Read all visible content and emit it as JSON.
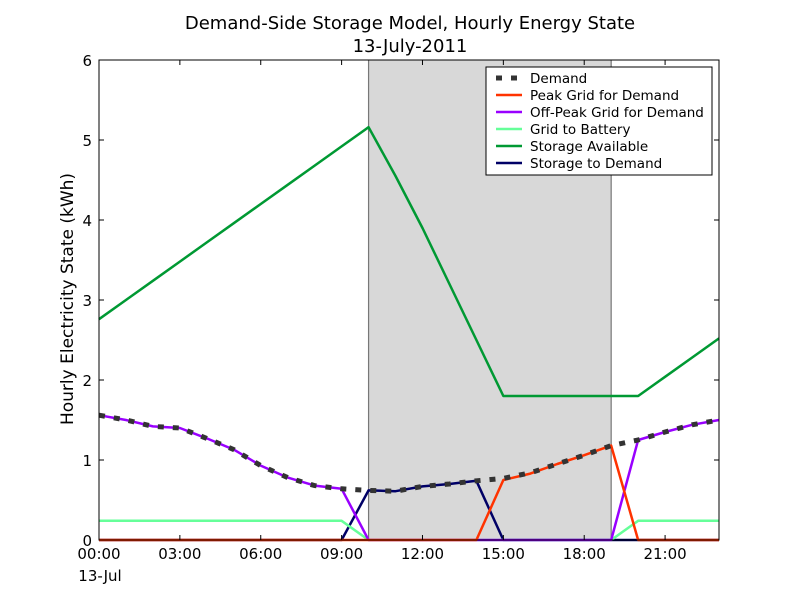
{
  "chart_data": {
    "type": "line",
    "title": "Demand-Side Storage Model, Hourly Energy State",
    "subtitle": "13-July-2011",
    "ylabel": "Hourly Electricity State (kWh)",
    "xlabel": "",
    "x_unit": "hour of day, 13-Jul-2011",
    "xlim": [
      0,
      23
    ],
    "ylim": [
      0,
      6
    ],
    "x_ticks": [
      {
        "x": 0,
        "label": "00:00"
      },
      {
        "x": 3,
        "label": "03:00"
      },
      {
        "x": 6,
        "label": "06:00"
      },
      {
        "x": 9,
        "label": "09:00"
      },
      {
        "x": 12,
        "label": "12:00"
      },
      {
        "x": 15,
        "label": "15:00"
      },
      {
        "x": 18,
        "label": "18:00"
      },
      {
        "x": 21,
        "label": "21:00"
      }
    ],
    "x_sublabel": "13-Jul",
    "y_ticks": [
      0,
      1,
      2,
      3,
      4,
      5,
      6
    ],
    "grid": false,
    "legend_position": "top-right",
    "peak_period": {
      "start": 10,
      "end": 19,
      "color": "#d8d8d8"
    },
    "series": [
      {
        "name": "Demand",
        "color": "#333333",
        "style": "dotted",
        "x": [
          0,
          1,
          2,
          3,
          4,
          5,
          6,
          7,
          8,
          9,
          10,
          11,
          12,
          13,
          14,
          15,
          16,
          17,
          18,
          19,
          20,
          21,
          22,
          23
        ],
        "values": [
          1.56,
          1.5,
          1.42,
          1.4,
          1.27,
          1.13,
          0.93,
          0.78,
          0.68,
          0.64,
          0.62,
          0.61,
          0.67,
          0.7,
          0.74,
          0.77,
          0.84,
          0.95,
          1.06,
          1.18,
          1.25,
          1.35,
          1.44,
          1.5
        ]
      },
      {
        "name": "Peak Grid for Demand",
        "color": "#ff3300",
        "style": "solid",
        "x": [
          0,
          1,
          2,
          3,
          4,
          5,
          6,
          7,
          8,
          9,
          10,
          11,
          12,
          13,
          14,
          15,
          16,
          17,
          18,
          19,
          20,
          21,
          22,
          23
        ],
        "values": [
          0,
          0,
          0,
          0,
          0,
          0,
          0,
          0,
          0,
          0,
          0,
          0,
          0,
          0,
          0,
          0.75,
          0.83,
          0.95,
          1.06,
          1.18,
          0,
          0,
          0,
          0
        ]
      },
      {
        "name": "Off-Peak Grid for Demand",
        "color": "#9900ff",
        "style": "solid",
        "x": [
          0,
          1,
          2,
          3,
          4,
          5,
          6,
          7,
          8,
          9,
          10,
          11,
          12,
          13,
          14,
          15,
          16,
          17,
          18,
          19,
          20,
          21,
          22,
          23
        ],
        "values": [
          1.56,
          1.5,
          1.42,
          1.4,
          1.27,
          1.13,
          0.93,
          0.78,
          0.68,
          0.64,
          0,
          0,
          0,
          0,
          0,
          0,
          0,
          0,
          0,
          0,
          1.25,
          1.35,
          1.44,
          1.5
        ]
      },
      {
        "name": "Grid to Battery",
        "color": "#66ff99",
        "style": "solid",
        "x": [
          0,
          1,
          2,
          3,
          4,
          5,
          6,
          7,
          8,
          9,
          10,
          11,
          12,
          13,
          14,
          15,
          16,
          17,
          18,
          19,
          20,
          21,
          22,
          23
        ],
        "values": [
          0.24,
          0.24,
          0.24,
          0.24,
          0.24,
          0.24,
          0.24,
          0.24,
          0.24,
          0.24,
          0,
          0,
          0,
          0,
          0,
          0,
          0,
          0,
          0,
          0,
          0.24,
          0.24,
          0.24,
          0.24
        ]
      },
      {
        "name": "Storage Available",
        "color": "#009933",
        "style": "solid",
        "x": [
          0,
          1,
          2,
          3,
          4,
          5,
          6,
          7,
          8,
          9,
          10,
          11,
          12,
          13,
          14,
          15,
          16,
          17,
          18,
          19,
          20,
          21,
          22,
          23
        ],
        "values": [
          2.76,
          3.0,
          3.24,
          3.48,
          3.72,
          3.96,
          4.2,
          4.44,
          4.68,
          4.92,
          5.16,
          4.55,
          3.9,
          3.2,
          2.5,
          1.8,
          1.8,
          1.8,
          1.8,
          1.8,
          1.8,
          2.04,
          2.28,
          2.52
        ]
      },
      {
        "name": "Storage to Demand",
        "color": "#000066",
        "style": "solid",
        "x": [
          0,
          1,
          2,
          3,
          4,
          5,
          6,
          7,
          8,
          9,
          10,
          11,
          12,
          13,
          14,
          15,
          16,
          17,
          18,
          19,
          20,
          21,
          22,
          23
        ],
        "values": [
          0,
          0,
          0,
          0,
          0,
          0,
          0,
          0,
          0,
          0,
          0.62,
          0.61,
          0.67,
          0.7,
          0.74,
          0,
          0,
          0,
          0,
          0,
          0,
          0,
          0,
          0
        ]
      }
    ]
  }
}
